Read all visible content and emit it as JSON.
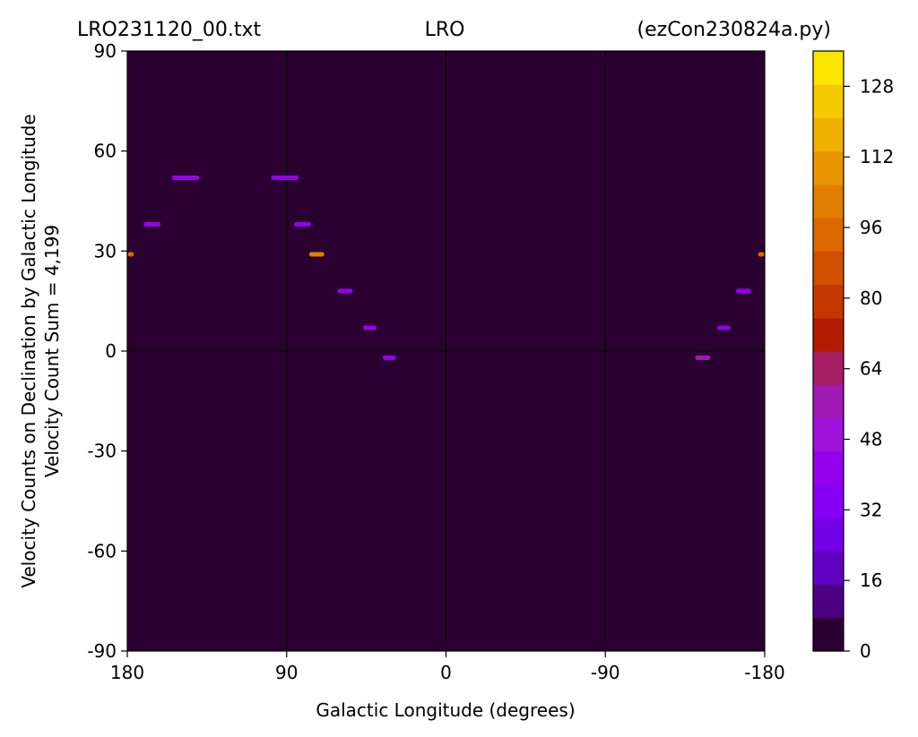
{
  "chart_data": {
    "type": "heatmap",
    "title_left": "LRO231120_00.txt",
    "title_center": "LRO",
    "title_right": "(ezCon230824a.py)",
    "xlabel": "Galactic Longitude (degrees)",
    "ylabel_line1": "Velocity Counts on Declination by Galactic Longitude",
    "ylabel_line2": "Velocity Count Sum = 4,199",
    "xlim": [
      180,
      -180
    ],
    "ylim": [
      -90,
      90
    ],
    "x_ticks": [
      "180",
      "90",
      "0",
      "-90",
      "-180"
    ],
    "y_ticks": [
      "90",
      "60",
      "30",
      "0",
      "-30",
      "-60",
      "-90"
    ],
    "grid": "lines at longitude 90, 0, -90 and declination 0",
    "background_color": "#2a0030",
    "colorbar": {
      "min": 0,
      "max": 136,
      "step": 8,
      "ticks": [
        "0",
        "16",
        "32",
        "48",
        "64",
        "80",
        "96",
        "112",
        "128"
      ],
      "colors": [
        "#2a0030",
        "#4a0080",
        "#6000c0",
        "#7400e8",
        "#8600f6",
        "#9400ee",
        "#a011dc",
        "#a019b4",
        "#a81e62",
        "#b41a00",
        "#c43800",
        "#d05000",
        "#dc6800",
        "#e27e00",
        "#e89600",
        "#f0b000",
        "#f6c800",
        "#fce500"
      ]
    },
    "points": [
      {
        "lon": 179,
        "dec": 29,
        "width": 3,
        "count": 96
      },
      {
        "lon": 166,
        "dec": 38,
        "width": 7,
        "count": 40
      },
      {
        "lon": 147,
        "dec": 52,
        "width": 13,
        "count": 40
      },
      {
        "lon": 91,
        "dec": 52,
        "width": 13,
        "count": 40
      },
      {
        "lon": 81,
        "dec": 38,
        "width": 7,
        "count": 40
      },
      {
        "lon": 73,
        "dec": 29,
        "width": 6,
        "count": 104
      },
      {
        "lon": 57,
        "dec": 18,
        "width": 6,
        "count": 40
      },
      {
        "lon": 43,
        "dec": 7,
        "width": 5,
        "count": 40
      },
      {
        "lon": 32,
        "dec": -2,
        "width": 5,
        "count": 40
      },
      {
        "lon": -145,
        "dec": -2,
        "width": 6,
        "count": 56
      },
      {
        "lon": -157,
        "dec": 7,
        "width": 5,
        "count": 40
      },
      {
        "lon": -168,
        "dec": 18,
        "width": 6,
        "count": 40
      },
      {
        "lon": -179,
        "dec": 29,
        "width": 3,
        "count": 96
      }
    ]
  }
}
